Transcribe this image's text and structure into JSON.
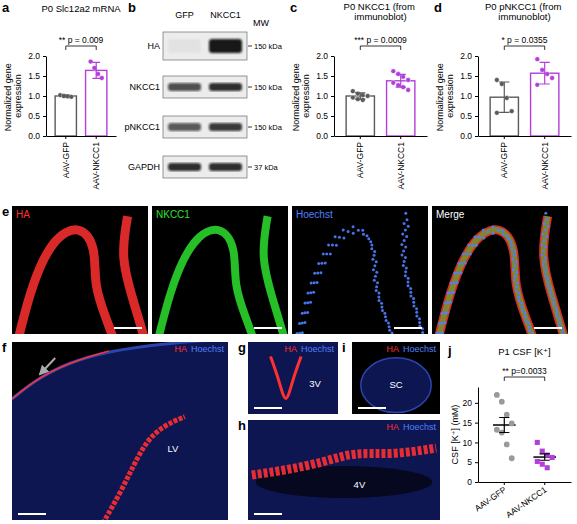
{
  "chart_data": [
    {
      "panel": "a",
      "type": "bar",
      "title": "P0 Slc12a2 mRNA",
      "y_label": "Normalized gene expression",
      "categories": [
        "AAV-GFP",
        "AAV-NKCC1"
      ],
      "values": [
        1.0,
        1.64
      ],
      "errors": [
        0.02,
        0.2
      ],
      "points": [
        [
          1.02,
          1.0,
          0.99,
          0.98
        ],
        [
          1.86,
          1.7,
          1.55,
          1.45
        ]
      ],
      "colors": [
        "#5a5a5a",
        "#b23fd9"
      ],
      "ylim": [
        0,
        2
      ],
      "yticks": [
        {
          "value": 0,
          "label": "0.0"
        },
        {
          "value": 0.5,
          "label": "0.5"
        },
        {
          "value": 1,
          "label": "1.0"
        },
        {
          "value": 1.5,
          "label": "1.5"
        },
        {
          "value": 2,
          "label": "2.0"
        }
      ],
      "annotations": [
        "** p = 0.009"
      ]
    },
    {
      "panel": "c",
      "type": "bar",
      "title": "P0 NKCC1 (from immunoblot)",
      "y_label": "Normalized gene expression",
      "categories": [
        "AAV-GFP",
        "AAV-NKCC1"
      ],
      "values": [
        1.0,
        1.38
      ],
      "errors": [
        0.08,
        0.16
      ],
      "points": [
        [
          1.12,
          1.06,
          1.02,
          1.0,
          0.96,
          0.92,
          0.9
        ],
        [
          1.62,
          1.55,
          1.48,
          1.4,
          1.33,
          1.27,
          1.22,
          1.15
        ]
      ],
      "colors": [
        "#5a5a5a",
        "#b23fd9"
      ],
      "ylim": [
        0,
        2
      ],
      "yticks": [
        {
          "value": 0,
          "label": "0.0"
        },
        {
          "value": 0.5,
          "label": "0.5"
        },
        {
          "value": 1,
          "label": "1.0"
        },
        {
          "value": 1.5,
          "label": "1.5"
        },
        {
          "value": 2,
          "label": "2.0"
        }
      ],
      "annotations": [
        "*** p = 0.0009"
      ]
    },
    {
      "panel": "d",
      "type": "bar",
      "title": "P0 pNKCC1 (from immunoblot)",
      "y_label": "Normalized gene expression",
      "categories": [
        "AAV-GFP",
        "AAV-NKCC1"
      ],
      "values": [
        0.97,
        1.57
      ],
      "errors": [
        0.38,
        0.27
      ],
      "points": [
        [
          1.4,
          1.3,
          0.95,
          0.62,
          0.58
        ],
        [
          1.92,
          1.65,
          1.55,
          1.45,
          1.28
        ]
      ],
      "colors": [
        "#5a5a5a",
        "#b23fd9"
      ],
      "ylim": [
        0,
        2
      ],
      "yticks": [
        {
          "value": 0,
          "label": "0.0"
        },
        {
          "value": 0.5,
          "label": "0.5"
        },
        {
          "value": 1,
          "label": "1.0"
        },
        {
          "value": 1.5,
          "label": "1.5"
        },
        {
          "value": 2,
          "label": "2.0"
        }
      ],
      "annotations": [
        "* p = 0.0355"
      ]
    },
    {
      "panel": "j",
      "type": "dot",
      "title": "P1 CSF [K⁺]",
      "y_label": "CSF [K⁺] (mM)",
      "series": [
        {
          "name": "AAV-GFP",
          "color": "#9a9a9a",
          "marker": "circle",
          "values": [
            22.0,
            20.3,
            17.0,
            14.8,
            13.2,
            12.5,
            9.5,
            6.0
          ]
        },
        {
          "name": "AAV-NKCC1",
          "color": "#b23fd9",
          "marker": "square",
          "values": [
            10.0,
            7.8,
            6.8,
            6.2,
            5.2,
            4.5,
            3.6
          ]
        }
      ],
      "means": [
        14.4,
        6.3
      ],
      "errors": [
        1.9,
        0.8
      ],
      "ylim": [
        0,
        24
      ],
      "yticks": [
        0,
        5,
        10,
        15,
        20
      ],
      "annotations": [
        "** p=0.0033"
      ]
    }
  ],
  "blot": {
    "panel": "b",
    "lanes": [
      "GFP",
      "NKCC1"
    ],
    "mw_header": "MW",
    "rows": [
      {
        "label": "HA",
        "mw": "150 kDa",
        "bands": [
          0.04,
          0.95
        ]
      },
      {
        "label": "NKCC1",
        "mw": "150 kDa",
        "bands": [
          0.7,
          0.85
        ]
      },
      {
        "label": "pNKCC1",
        "mw": "150 kDa",
        "bands": [
          0.65,
          0.8
        ]
      },
      {
        "label": "GAPDH",
        "mw": "37 kDa",
        "bands": [
          0.85,
          0.85
        ]
      }
    ]
  },
  "images": [
    {
      "panel": "e",
      "tiles": [
        {
          "label": "HA",
          "color": "#ff3030"
        },
        {
          "label": "NKCC1",
          "color": "#2ee02e"
        },
        {
          "label": "Hoechst",
          "color": "#5080ff"
        },
        {
          "label": "Merge",
          "color": "#ffffff"
        }
      ]
    },
    {
      "panel": "f",
      "stains": [
        {
          "label": "HA",
          "color": "#ff3030"
        },
        {
          "label": "Hoechst",
          "color": "#5080ff"
        }
      ],
      "region": "LV"
    },
    {
      "panel": "g",
      "stains": [
        {
          "label": "HA",
          "color": "#ff3030"
        },
        {
          "label": "Hoechst",
          "color": "#5080ff"
        }
      ],
      "region": "3V"
    },
    {
      "panel": "h",
      "stains": [
        {
          "label": "HA",
          "color": "#ff3030"
        },
        {
          "label": "Hoechst",
          "color": "#5080ff"
        }
      ],
      "region": "4V"
    },
    {
      "panel": "i",
      "stains": [
        {
          "label": "HA",
          "color": "#ff3030"
        },
        {
          "label": "Hoechst",
          "color": "#5080ff"
        }
      ],
      "region": "SC"
    }
  ]
}
